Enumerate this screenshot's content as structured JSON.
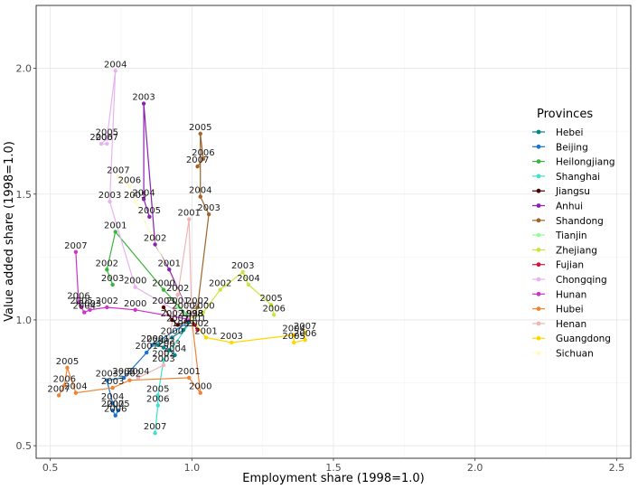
{
  "chart_data": {
    "type": "line",
    "title": "",
    "xlabel": "Employment share (1998=1.0)",
    "ylabel": "Value added share (1998=1.0)",
    "xlim": [
      0.45,
      2.55
    ],
    "ylim": [
      0.45,
      2.25
    ],
    "xticks": [
      "0.5",
      "1.0",
      "1.5",
      "2.0",
      "2.5"
    ],
    "yticks": [
      "0.5",
      "1.0",
      "1.5",
      "2.0"
    ],
    "xtick_values": [
      0.5,
      1.0,
      1.5,
      2.0,
      2.5
    ],
    "ytick_values": [
      0.5,
      1.0,
      1.5,
      2.0
    ],
    "legend_title": "Provinces",
    "series": [
      {
        "name": "Hebei",
        "color": "#00868b",
        "points": [
          {
            "year": "1998",
            "x": 1.0,
            "y": 1.0
          },
          {
            "year": "1999",
            "x": 0.97,
            "y": 0.96
          },
          {
            "year": "2000",
            "x": 0.93,
            "y": 0.93
          },
          {
            "year": "2001",
            "x": 0.88,
            "y": 0.9
          },
          {
            "year": "2002",
            "x": 0.9,
            "y": 0.89
          },
          {
            "year": "2003",
            "x": 0.92,
            "y": 0.88
          },
          {
            "year": "2004",
            "x": 0.94,
            "y": 0.86
          }
        ]
      },
      {
        "name": "Beijing",
        "color": "#1874cd",
        "points": [
          {
            "year": "1998",
            "x": 1.0,
            "y": 1.0
          },
          {
            "year": "2000",
            "x": 0.86,
            "y": 0.9
          },
          {
            "year": "2001",
            "x": 0.84,
            "y": 0.87
          },
          {
            "year": "2002",
            "x": 0.76,
            "y": 0.77
          },
          {
            "year": "2003",
            "x": 0.7,
            "y": 0.76
          },
          {
            "year": "2004",
            "x": 0.72,
            "y": 0.67
          },
          {
            "year": "2005",
            "x": 0.74,
            "y": 0.64
          },
          {
            "year": "2006",
            "x": 0.73,
            "y": 0.62
          },
          {
            "year": "2007",
            "x": 0.72,
            "y": 0.64
          }
        ]
      },
      {
        "name": "Heilongjiang",
        "color": "#3cb33c",
        "points": [
          {
            "year": "1998",
            "x": 1.0,
            "y": 1.0
          },
          {
            "year": "2000",
            "x": 0.9,
            "y": 1.12
          },
          {
            "year": "2001",
            "x": 0.73,
            "y": 1.35
          },
          {
            "year": "2002",
            "x": 0.7,
            "y": 1.2
          },
          {
            "year": "2003",
            "x": 0.72,
            "y": 1.14
          }
        ]
      },
      {
        "name": "Shanghai",
        "color": "#40e0d0",
        "points": [
          {
            "year": "1998",
            "x": 1.0,
            "y": 1.0
          },
          {
            "year": "2002",
            "x": 0.9,
            "y": 0.84
          },
          {
            "year": "2005",
            "x": 0.88,
            "y": 0.7
          },
          {
            "year": "2006",
            "x": 0.88,
            "y": 0.66
          },
          {
            "year": "2007",
            "x": 0.87,
            "y": 0.55
          }
        ]
      },
      {
        "name": "Jiangsu",
        "color": "#4a0000",
        "points": [
          {
            "year": "1998",
            "x": 1.0,
            "y": 1.0
          },
          {
            "year": "2001",
            "x": 0.95,
            "y": 0.98
          },
          {
            "year": "2002",
            "x": 0.93,
            "y": 1.0
          },
          {
            "year": "2003",
            "x": 0.9,
            "y": 1.05
          }
        ]
      },
      {
        "name": "Anhui",
        "color": "#8b20b4",
        "points": [
          {
            "year": "1998",
            "x": 1.0,
            "y": 1.0
          },
          {
            "year": "2001",
            "x": 0.92,
            "y": 1.2
          },
          {
            "year": "2002",
            "x": 0.87,
            "y": 1.3
          },
          {
            "year": "2003",
            "x": 0.83,
            "y": 1.86
          },
          {
            "year": "2004",
            "x": 0.83,
            "y": 1.48
          },
          {
            "year": "2005",
            "x": 0.85,
            "y": 1.41
          }
        ]
      },
      {
        "name": "Shandong",
        "color": "#a0642a",
        "points": [
          {
            "year": "1998",
            "x": 1.0,
            "y": 1.0
          },
          {
            "year": "2002",
            "x": 1.02,
            "y": 1.05
          },
          {
            "year": "2003",
            "x": 1.06,
            "y": 1.42
          },
          {
            "year": "2004",
            "x": 1.03,
            "y": 1.49
          },
          {
            "year": "2005",
            "x": 1.03,
            "y": 1.74
          },
          {
            "year": "2006",
            "x": 1.04,
            "y": 1.64
          },
          {
            "year": "2007",
            "x": 1.02,
            "y": 1.61
          }
        ]
      },
      {
        "name": "Tianjin",
        "color": "#98fb98",
        "points": [
          {
            "year": "1998",
            "x": 1.0,
            "y": 1.0
          },
          {
            "year": "2000",
            "x": 0.97,
            "y": 1.03
          },
          {
            "year": "2001",
            "x": 0.95,
            "y": 1.05
          }
        ]
      },
      {
        "name": "Zhejiang",
        "color": "#c5e83c",
        "points": [
          {
            "year": "1998",
            "x": 1.0,
            "y": 1.0
          },
          {
            "year": "2000",
            "x": 1.04,
            "y": 1.03
          },
          {
            "year": "2002",
            "x": 1.1,
            "y": 1.12
          },
          {
            "year": "2003",
            "x": 1.18,
            "y": 1.19
          },
          {
            "year": "2004",
            "x": 1.2,
            "y": 1.14
          },
          {
            "year": "2005",
            "x": 1.28,
            "y": 1.06
          },
          {
            "year": "2006",
            "x": 1.29,
            "y": 1.02
          }
        ]
      },
      {
        "name": "Fujian",
        "color": "#d2143c",
        "points": [
          {
            "year": "1998",
            "x": 1.0,
            "y": 1.0
          },
          {
            "year": "2001",
            "x": 1.01,
            "y": 0.98
          },
          {
            "year": "2002",
            "x": 1.02,
            "y": 0.96
          }
        ]
      },
      {
        "name": "Chongqing",
        "color": "#e6b4f0",
        "points": [
          {
            "year": "1998",
            "x": 1.0,
            "y": 1.0
          },
          {
            "year": "2000",
            "x": 0.8,
            "y": 1.13
          },
          {
            "year": "2003",
            "x": 0.71,
            "y": 1.47
          },
          {
            "year": "2004",
            "x": 0.73,
            "y": 1.99
          },
          {
            "year": "2005",
            "x": 0.7,
            "y": 1.72
          },
          {
            "year": "2006",
            "x": 0.68,
            "y": 1.7
          },
          {
            "year": "2007",
            "x": 0.7,
            "y": 1.7
          }
        ]
      },
      {
        "name": "Hunan",
        "color": "#cd32cd",
        "points": [
          {
            "year": "1998",
            "x": 1.0,
            "y": 1.0
          },
          {
            "year": "2000",
            "x": 0.8,
            "y": 1.04
          },
          {
            "year": "2002",
            "x": 0.7,
            "y": 1.05
          },
          {
            "year": "2003",
            "x": 0.64,
            "y": 1.04
          },
          {
            "year": "2004",
            "x": 0.62,
            "y": 1.03
          },
          {
            "year": "2005",
            "x": 0.61,
            "y": 1.05
          },
          {
            "year": "2006",
            "x": 0.6,
            "y": 1.07
          },
          {
            "year": "2007",
            "x": 0.59,
            "y": 1.27
          }
        ]
      },
      {
        "name": "Hubei",
        "color": "#f08232",
        "points": [
          {
            "year": "1998",
            "x": 1.0,
            "y": 1.0
          },
          {
            "year": "2000",
            "x": 1.03,
            "y": 0.71
          },
          {
            "year": "2001",
            "x": 0.99,
            "y": 0.77
          },
          {
            "year": "2002",
            "x": 0.78,
            "y": 0.76
          },
          {
            "year": "2003",
            "x": 0.72,
            "y": 0.73
          },
          {
            "year": "2004",
            "x": 0.59,
            "y": 0.71
          },
          {
            "year": "2005",
            "x": 0.56,
            "y": 0.81
          },
          {
            "year": "2006",
            "x": 0.55,
            "y": 0.74
          },
          {
            "year": "2007",
            "x": 0.53,
            "y": 0.7
          }
        ]
      },
      {
        "name": "Henan",
        "color": "#f0b4b4",
        "points": [
          {
            "year": "1998",
            "x": 1.0,
            "y": 1.0
          },
          {
            "year": "2001",
            "x": 0.99,
            "y": 1.4
          },
          {
            "year": "2002",
            "x": 0.95,
            "y": 1.1
          },
          {
            "year": "2003",
            "x": 0.9,
            "y": 0.82
          },
          {
            "year": "2004",
            "x": 0.81,
            "y": 0.77
          }
        ]
      },
      {
        "name": "Guangdong",
        "color": "#ffd700",
        "points": [
          {
            "year": "1998",
            "x": 1.0,
            "y": 1.0
          },
          {
            "year": "2001",
            "x": 1.05,
            "y": 0.93
          },
          {
            "year": "2003",
            "x": 1.14,
            "y": 0.91
          },
          {
            "year": "2004",
            "x": 1.36,
            "y": 0.94
          },
          {
            "year": "2005",
            "x": 1.36,
            "y": 0.91
          },
          {
            "year": "2006",
            "x": 1.4,
            "y": 0.92
          },
          {
            "year": "2007",
            "x": 1.4,
            "y": 0.95
          }
        ]
      },
      {
        "name": "Sichuan",
        "color": "#fffac8",
        "points": [
          {
            "year": "1998",
            "x": 1.0,
            "y": 1.0
          },
          {
            "year": "2005",
            "x": 0.8,
            "y": 1.47
          },
          {
            "year": "2006",
            "x": 0.78,
            "y": 1.53
          },
          {
            "year": "2007",
            "x": 0.74,
            "y": 1.57
          }
        ]
      }
    ]
  }
}
